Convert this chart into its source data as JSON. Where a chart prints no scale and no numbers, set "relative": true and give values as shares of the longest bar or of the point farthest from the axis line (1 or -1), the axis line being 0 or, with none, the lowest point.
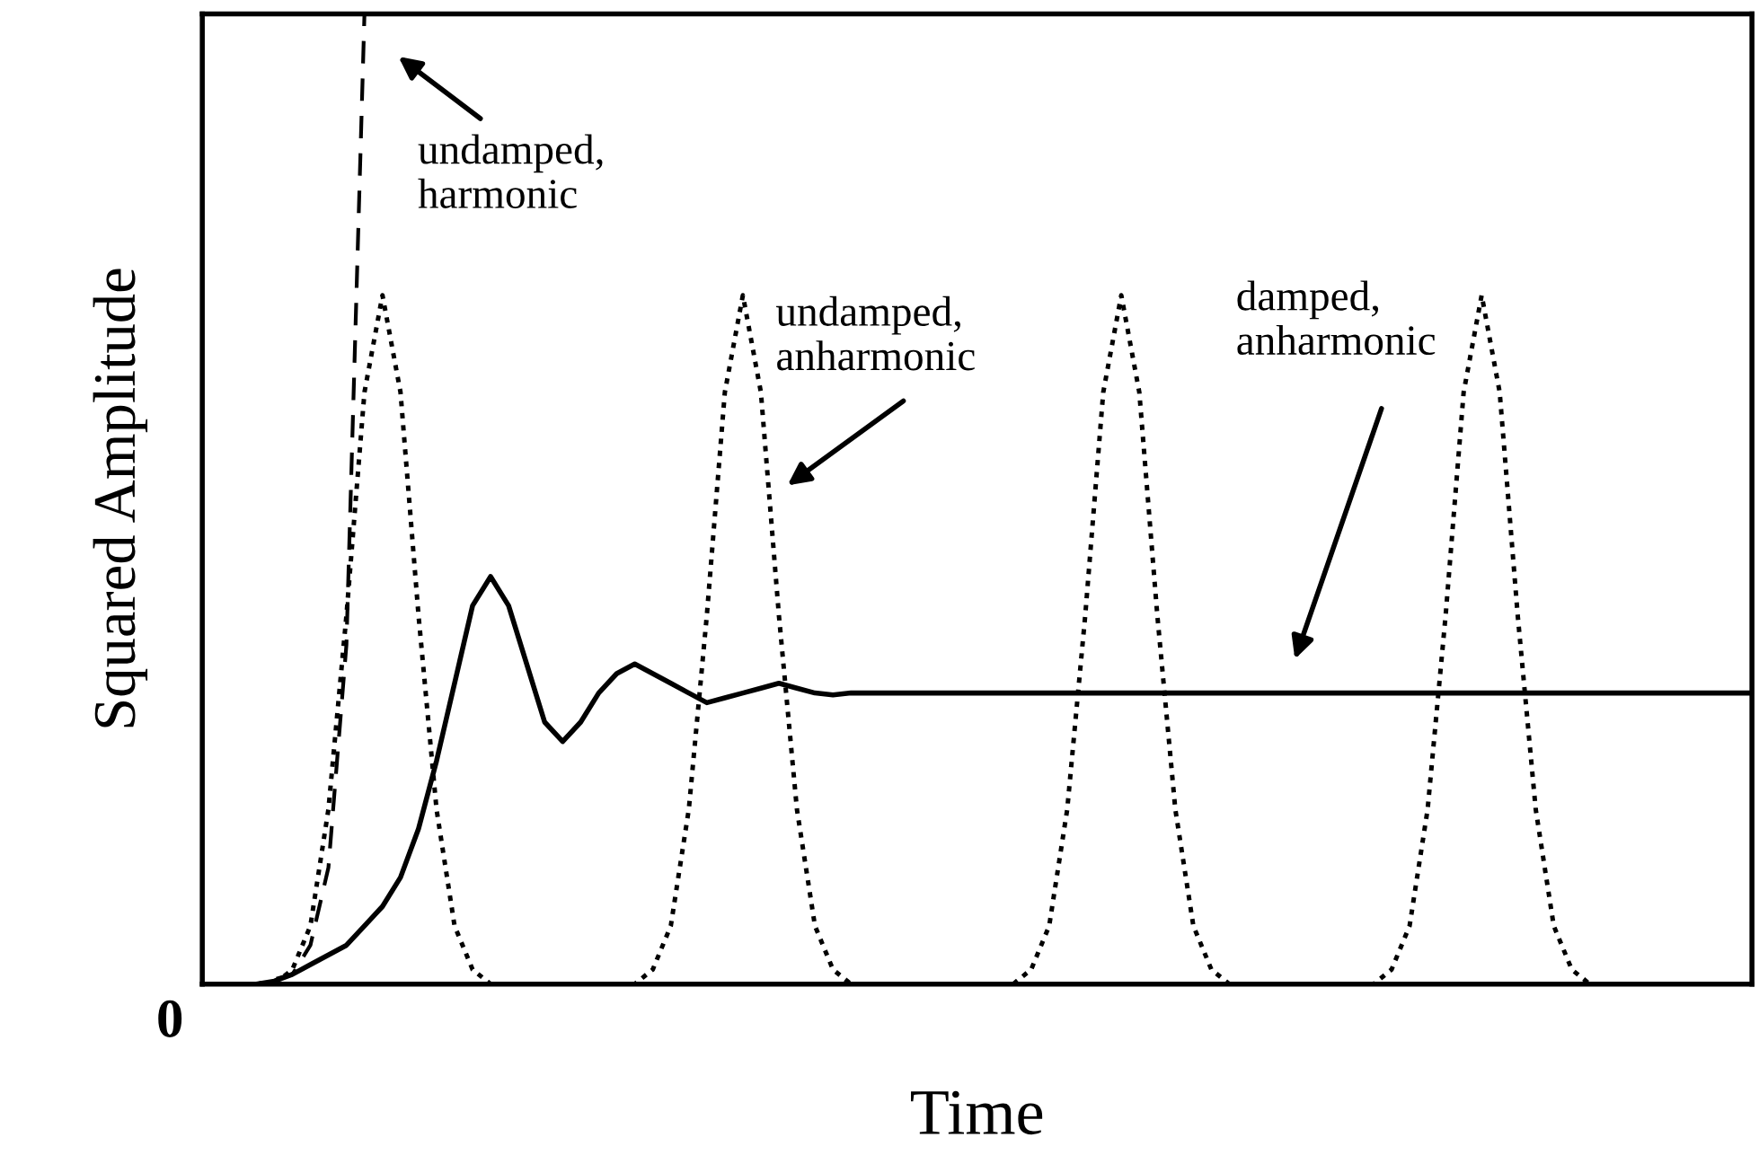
{
  "chart_data": {
    "type": "line",
    "relative": true,
    "xlabel": "Time",
    "ylabel": "Squared Amplitude",
    "categories": [
      null,
      null,
      null,
      null,
      null,
      null,
      null,
      null,
      null,
      null,
      null,
      null,
      null,
      null,
      null,
      null,
      null,
      null,
      null,
      null,
      null,
      null,
      null,
      null,
      null,
      null,
      null,
      null,
      null,
      null,
      null,
      null,
      null,
      null,
      null,
      null,
      null,
      null,
      null,
      null,
      null,
      null,
      null,
      null,
      null,
      null,
      null,
      null,
      null,
      null,
      null,
      null,
      null,
      null,
      null,
      null,
      null,
      null,
      null,
      null,
      null,
      null,
      null,
      null,
      null,
      null,
      null,
      null,
      null,
      null,
      null,
      null,
      null,
      null,
      null,
      null,
      null,
      null,
      null,
      null,
      null,
      null,
      null,
      null,
      null,
      null,
      null
    ],
    "series": [
      {
        "color": "#000000",
        "line_style": "dashed",
        "values": [
          0,
          0,
          0,
          0,
          0.005,
          0.01,
          0.04,
          0.12,
          0.35,
          1.0,
          null,
          null,
          null,
          null,
          null,
          null,
          null,
          null,
          null,
          null,
          null,
          null,
          null,
          null,
          null,
          null,
          null,
          null,
          null,
          null,
          null,
          null,
          null,
          null,
          null,
          null,
          null,
          null,
          null,
          null,
          null,
          null,
          null,
          null,
          null,
          null,
          null,
          null,
          null,
          null,
          null,
          null,
          null,
          null,
          null,
          null,
          null,
          null,
          null,
          null,
          null,
          null,
          null,
          null,
          null,
          null,
          null,
          null,
          null,
          null,
          null,
          null,
          null,
          null,
          null,
          null,
          null,
          null,
          null,
          null,
          null,
          null,
          null,
          null,
          null,
          null,
          null
        ]
      },
      {
        "color": "#000000",
        "line_style": "dotted",
        "values": [
          0,
          0,
          0,
          0,
          0,
          0.015,
          0.06,
          0.18,
          0.38,
          0.61,
          0.71,
          0.61,
          0.38,
          0.18,
          0.06,
          0.015,
          0,
          0,
          0,
          0,
          0,
          0,
          0,
          0,
          0,
          0.015,
          0.06,
          0.18,
          0.38,
          0.61,
          0.71,
          0.61,
          0.38,
          0.18,
          0.06,
          0.015,
          0,
          0,
          0,
          0,
          0,
          0,
          0,
          0,
          0,
          0,
          0.015,
          0.06,
          0.18,
          0.38,
          0.61,
          0.71,
          0.61,
          0.38,
          0.18,
          0.06,
          0.015,
          0,
          0,
          0,
          0,
          0,
          0,
          0,
          0,
          0,
          0.015,
          0.06,
          0.18,
          0.38,
          0.61,
          0.71,
          0.61,
          0.38,
          0.18,
          0.06,
          0.015,
          0,
          0,
          0,
          0,
          0,
          0,
          0,
          0,
          0,
          0
        ]
      },
      {
        "color": "#000000",
        "line_style": "solid",
        "values": [
          0,
          0,
          0,
          0,
          0.003,
          0.01,
          0.02,
          0.03,
          0.04,
          0.06,
          0.08,
          0.11,
          0.16,
          0.23,
          0.31,
          0.39,
          0.42,
          0.39,
          0.33,
          0.27,
          0.25,
          0.27,
          0.3,
          0.32,
          0.33,
          0.32,
          0.31,
          0.3,
          0.29,
          0.295,
          0.3,
          0.305,
          0.31,
          0.305,
          0.3,
          0.298,
          0.3,
          0.3,
          0.3,
          0.3,
          0.3,
          0.3,
          0.3,
          0.3,
          0.3,
          0.3,
          0.3,
          0.3,
          0.3,
          0.3,
          0.3,
          0.3,
          0.3,
          0.3,
          0.3,
          0.3,
          0.3,
          0.3,
          0.3,
          0.3,
          0.3,
          0.3,
          0.3,
          0.3,
          0.3,
          0.3,
          0.3,
          0.3,
          0.3,
          0.3,
          0.3,
          0.3,
          0.3,
          0.3,
          0.3,
          0.3,
          0.3,
          0.3,
          0.3,
          0.3,
          0.3,
          0.3,
          0.3,
          0.3,
          0.3,
          0.3,
          0.3
        ]
      }
    ],
    "annotations": [
      "undamped,\nharmonic",
      "undamped,\nanharmonic",
      "damped,\nanharmonic",
      "0"
    ]
  }
}
